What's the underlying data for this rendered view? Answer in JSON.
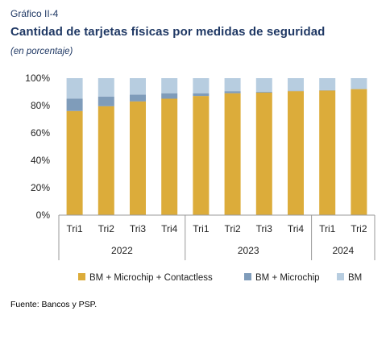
{
  "header": {
    "kicker": "Gráfico II-4",
    "title": "Cantidad de tarjetas físicas por medidas de seguridad",
    "subtitle": "(en porcentaje)"
  },
  "footer": {
    "source": "Fuente: Bancos y PSP."
  },
  "chart_data": {
    "type": "bar",
    "stacked": true,
    "categories": [
      "Tri1",
      "Tri2",
      "Tri3",
      "Tri4",
      "Tri1",
      "Tri2",
      "Tri3",
      "Tri4",
      "Tri1",
      "Tri2"
    ],
    "groups": [
      {
        "label": "2022",
        "count": 4
      },
      {
        "label": "2023",
        "count": 4
      },
      {
        "label": "2024",
        "count": 2
      }
    ],
    "series": [
      {
        "name": "BM + Microchip + Contactless",
        "color": "#dcac3a",
        "values": [
          76,
          79.5,
          83,
          85,
          87,
          89,
          89.5,
          90.5,
          91,
          92
        ]
      },
      {
        "name": "BM + Microchip",
        "color": "#7f9cba",
        "values": [
          9,
          7,
          5,
          4,
          2,
          1.5,
          0.5,
          0.3,
          0.2,
          0.1
        ]
      },
      {
        "name": "BM",
        "color": "#b7cde0",
        "values": [
          15,
          13.5,
          12,
          11,
          11,
          9.5,
          10,
          9.2,
          8.8,
          7.9
        ]
      }
    ],
    "ylim": [
      0,
      100
    ],
    "yticks": [
      "0%",
      "20%",
      "40%",
      "60%",
      "80%",
      "100%"
    ],
    "grid": false,
    "legend_position": "bottom"
  }
}
